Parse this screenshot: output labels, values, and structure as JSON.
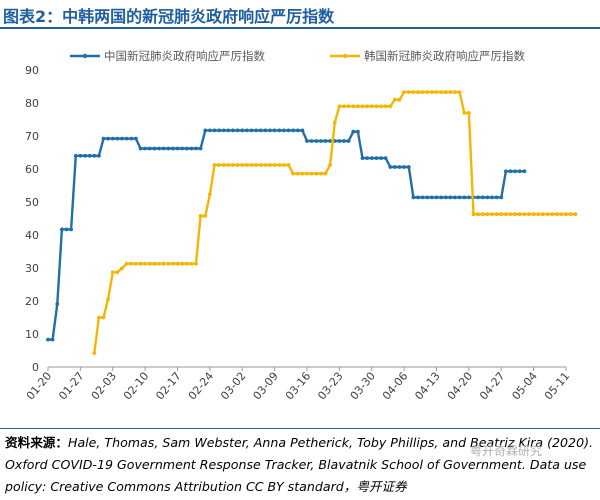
{
  "figure": {
    "title": "图表2：中韩两国的新冠肺炎政府响应严厉指数",
    "source_label": "资料来源：",
    "source_text": "Hale, Thomas, Sam Webster, Anna Petherick, Toby Phillips, and Beatriz Kira (2020). Oxford COVID-19 Government Response Tracker, Blavatnik School of Government. Data use policy: Creative Commons Attribution CC BY standard，粤开证券",
    "watermark": "粤开奇霖研究"
  },
  "colors": {
    "title": "#1f5f9e",
    "china": "#1f6fa8",
    "korea": "#f2b705",
    "grid": "#d9d9d9",
    "axis": "#999999",
    "tick_text": "#404040"
  },
  "chart_data": {
    "type": "line",
    "title": "",
    "xlabel": "",
    "ylabel": "",
    "ylim": [
      0,
      90
    ],
    "yticks": [
      0,
      10,
      20,
      30,
      40,
      50,
      60,
      70,
      80,
      90
    ],
    "xlim": [
      "01-20",
      "05-11"
    ],
    "xticks": [
      "01-20",
      "01-27",
      "02-03",
      "02-10",
      "02-17",
      "02-24",
      "03-02",
      "03-09",
      "03-16",
      "03-23",
      "03-30",
      "04-06",
      "04-13",
      "04-20",
      "04-27",
      "05-04",
      "05-11"
    ],
    "grid": false,
    "legend": "top",
    "series": [
      {
        "name": "中国新冠肺炎政府响应严厉指数",
        "color": "#1f6fa8",
        "points": [
          [
            "01-20",
            8.3
          ],
          [
            "01-21",
            8.3
          ],
          [
            "01-22",
            19.1
          ],
          [
            "01-23",
            41.7
          ],
          [
            "01-24",
            41.7
          ],
          [
            "01-25",
            41.7
          ],
          [
            "01-26",
            64.0
          ],
          [
            "01-27",
            64.0
          ],
          [
            "01-28",
            64.0
          ],
          [
            "01-29",
            64.0
          ],
          [
            "01-30",
            64.0
          ],
          [
            "01-31",
            64.0
          ],
          [
            "02-01",
            69.2
          ],
          [
            "02-02",
            69.2
          ],
          [
            "02-03",
            69.2
          ],
          [
            "02-04",
            69.2
          ],
          [
            "02-05",
            69.2
          ],
          [
            "02-06",
            69.2
          ],
          [
            "02-07",
            69.2
          ],
          [
            "02-08",
            69.2
          ],
          [
            "02-09",
            66.2
          ],
          [
            "02-10",
            66.2
          ],
          [
            "02-11",
            66.2
          ],
          [
            "02-12",
            66.2
          ],
          [
            "02-13",
            66.2
          ],
          [
            "02-14",
            66.2
          ],
          [
            "02-15",
            66.2
          ],
          [
            "02-16",
            66.2
          ],
          [
            "02-17",
            66.2
          ],
          [
            "02-18",
            66.2
          ],
          [
            "02-19",
            66.2
          ],
          [
            "02-20",
            66.2
          ],
          [
            "02-21",
            66.2
          ],
          [
            "02-22",
            66.2
          ],
          [
            "02-23",
            71.7
          ],
          [
            "02-24",
            71.7
          ],
          [
            "02-25",
            71.7
          ],
          [
            "02-26",
            71.7
          ],
          [
            "02-27",
            71.7
          ],
          [
            "02-28",
            71.7
          ],
          [
            "02-29",
            71.7
          ],
          [
            "03-01",
            71.7
          ],
          [
            "03-02",
            71.7
          ],
          [
            "03-03",
            71.7
          ],
          [
            "03-04",
            71.7
          ],
          [
            "03-05",
            71.7
          ],
          [
            "03-06",
            71.7
          ],
          [
            "03-07",
            71.7
          ],
          [
            "03-08",
            71.7
          ],
          [
            "03-09",
            71.7
          ],
          [
            "03-10",
            71.7
          ],
          [
            "03-11",
            71.7
          ],
          [
            "03-12",
            71.7
          ],
          [
            "03-13",
            71.7
          ],
          [
            "03-14",
            71.7
          ],
          [
            "03-15",
            71.7
          ],
          [
            "03-16",
            68.5
          ],
          [
            "03-17",
            68.5
          ],
          [
            "03-18",
            68.5
          ],
          [
            "03-19",
            68.5
          ],
          [
            "03-20",
            68.5
          ],
          [
            "03-21",
            68.5
          ],
          [
            "03-22",
            68.5
          ],
          [
            "03-23",
            68.5
          ],
          [
            "03-24",
            68.5
          ],
          [
            "03-25",
            68.5
          ],
          [
            "03-26",
            71.3
          ],
          [
            "03-27",
            71.3
          ],
          [
            "03-28",
            63.3
          ],
          [
            "03-29",
            63.3
          ],
          [
            "03-30",
            63.3
          ],
          [
            "03-31",
            63.3
          ],
          [
            "04-01",
            63.3
          ],
          [
            "04-02",
            63.3
          ],
          [
            "04-03",
            60.6
          ],
          [
            "04-04",
            60.6
          ],
          [
            "04-05",
            60.6
          ],
          [
            "04-06",
            60.6
          ],
          [
            "04-07",
            60.6
          ],
          [
            "04-08",
            51.4
          ],
          [
            "04-09",
            51.4
          ],
          [
            "04-10",
            51.4
          ],
          [
            "04-11",
            51.4
          ],
          [
            "04-12",
            51.4
          ],
          [
            "04-13",
            51.4
          ],
          [
            "04-14",
            51.4
          ],
          [
            "04-15",
            51.4
          ],
          [
            "04-16",
            51.4
          ],
          [
            "04-17",
            51.4
          ],
          [
            "04-18",
            51.4
          ],
          [
            "04-19",
            51.4
          ],
          [
            "04-20",
            51.4
          ],
          [
            "04-21",
            51.4
          ],
          [
            "04-22",
            51.4
          ],
          [
            "04-23",
            51.4
          ],
          [
            "04-24",
            51.4
          ],
          [
            "04-25",
            51.4
          ],
          [
            "04-26",
            51.4
          ],
          [
            "04-27",
            51.4
          ],
          [
            "04-28",
            59.3
          ],
          [
            "04-29",
            59.3
          ],
          [
            "04-30",
            59.3
          ],
          [
            "05-01",
            59.3
          ],
          [
            "05-02",
            59.3
          ]
        ]
      },
      {
        "name": "韩国新冠肺炎政府响应严厉指数",
        "color": "#f2b705",
        "points": [
          [
            "01-30",
            4.2
          ],
          [
            "01-31",
            15.0
          ],
          [
            "02-01",
            15.0
          ],
          [
            "02-02",
            20.6
          ],
          [
            "02-03",
            28.7
          ],
          [
            "02-04",
            28.7
          ],
          [
            "02-05",
            29.9
          ],
          [
            "02-06",
            31.3
          ],
          [
            "02-07",
            31.3
          ],
          [
            "02-08",
            31.3
          ],
          [
            "02-09",
            31.3
          ],
          [
            "02-10",
            31.3
          ],
          [
            "02-11",
            31.3
          ],
          [
            "02-12",
            31.3
          ],
          [
            "02-13",
            31.3
          ],
          [
            "02-14",
            31.3
          ],
          [
            "02-15",
            31.3
          ],
          [
            "02-16",
            31.3
          ],
          [
            "02-17",
            31.3
          ],
          [
            "02-18",
            31.3
          ],
          [
            "02-19",
            31.3
          ],
          [
            "02-20",
            31.3
          ],
          [
            "02-21",
            31.3
          ],
          [
            "02-22",
            45.8
          ],
          [
            "02-23",
            45.8
          ],
          [
            "02-24",
            52.3
          ],
          [
            "02-25",
            61.2
          ],
          [
            "02-26",
            61.2
          ],
          [
            "02-27",
            61.2
          ],
          [
            "02-28",
            61.2
          ],
          [
            "02-29",
            61.2
          ],
          [
            "03-01",
            61.2
          ],
          [
            "03-02",
            61.2
          ],
          [
            "03-03",
            61.2
          ],
          [
            "03-04",
            61.2
          ],
          [
            "03-05",
            61.2
          ],
          [
            "03-06",
            61.2
          ],
          [
            "03-07",
            61.2
          ],
          [
            "03-08",
            61.2
          ],
          [
            "03-09",
            61.2
          ],
          [
            "03-10",
            61.2
          ],
          [
            "03-11",
            61.2
          ],
          [
            "03-12",
            61.2
          ],
          [
            "03-13",
            58.6
          ],
          [
            "03-14",
            58.6
          ],
          [
            "03-15",
            58.6
          ],
          [
            "03-16",
            58.6
          ],
          [
            "03-17",
            58.6
          ],
          [
            "03-18",
            58.6
          ],
          [
            "03-19",
            58.6
          ],
          [
            "03-20",
            58.6
          ],
          [
            "03-21",
            61.2
          ],
          [
            "03-22",
            74.1
          ],
          [
            "03-23",
            79.0
          ],
          [
            "03-24",
            79.0
          ],
          [
            "03-25",
            79.0
          ],
          [
            "03-26",
            79.0
          ],
          [
            "03-27",
            79.0
          ],
          [
            "03-28",
            79.0
          ],
          [
            "03-29",
            79.0
          ],
          [
            "03-30",
            79.0
          ],
          [
            "03-31",
            79.0
          ],
          [
            "04-01",
            79.0
          ],
          [
            "04-02",
            79.0
          ],
          [
            "04-03",
            79.0
          ],
          [
            "04-04",
            81.0
          ],
          [
            "04-05",
            81.0
          ],
          [
            "04-06",
            83.3
          ],
          [
            "04-07",
            83.3
          ],
          [
            "04-08",
            83.3
          ],
          [
            "04-09",
            83.3
          ],
          [
            "04-10",
            83.3
          ],
          [
            "04-11",
            83.3
          ],
          [
            "04-12",
            83.3
          ],
          [
            "04-13",
            83.3
          ],
          [
            "04-14",
            83.3
          ],
          [
            "04-15",
            83.3
          ],
          [
            "04-16",
            83.3
          ],
          [
            "04-17",
            83.3
          ],
          [
            "04-18",
            83.3
          ],
          [
            "04-19",
            77.0
          ],
          [
            "04-20",
            77.0
          ],
          [
            "04-21",
            46.3
          ],
          [
            "04-22",
            46.3
          ],
          [
            "04-23",
            46.3
          ],
          [
            "04-24",
            46.3
          ],
          [
            "04-25",
            46.3
          ],
          [
            "04-26",
            46.3
          ],
          [
            "04-27",
            46.3
          ],
          [
            "04-28",
            46.3
          ],
          [
            "04-29",
            46.3
          ],
          [
            "04-30",
            46.3
          ],
          [
            "05-01",
            46.3
          ],
          [
            "05-02",
            46.3
          ],
          [
            "05-03",
            46.3
          ],
          [
            "05-04",
            46.3
          ],
          [
            "05-05",
            46.3
          ],
          [
            "05-06",
            46.3
          ],
          [
            "05-07",
            46.3
          ],
          [
            "05-08",
            46.3
          ],
          [
            "05-09",
            46.3
          ],
          [
            "05-10",
            46.3
          ],
          [
            "05-11",
            46.3
          ],
          [
            "05-12",
            46.3
          ],
          [
            "05-13",
            46.3
          ]
        ]
      }
    ]
  }
}
